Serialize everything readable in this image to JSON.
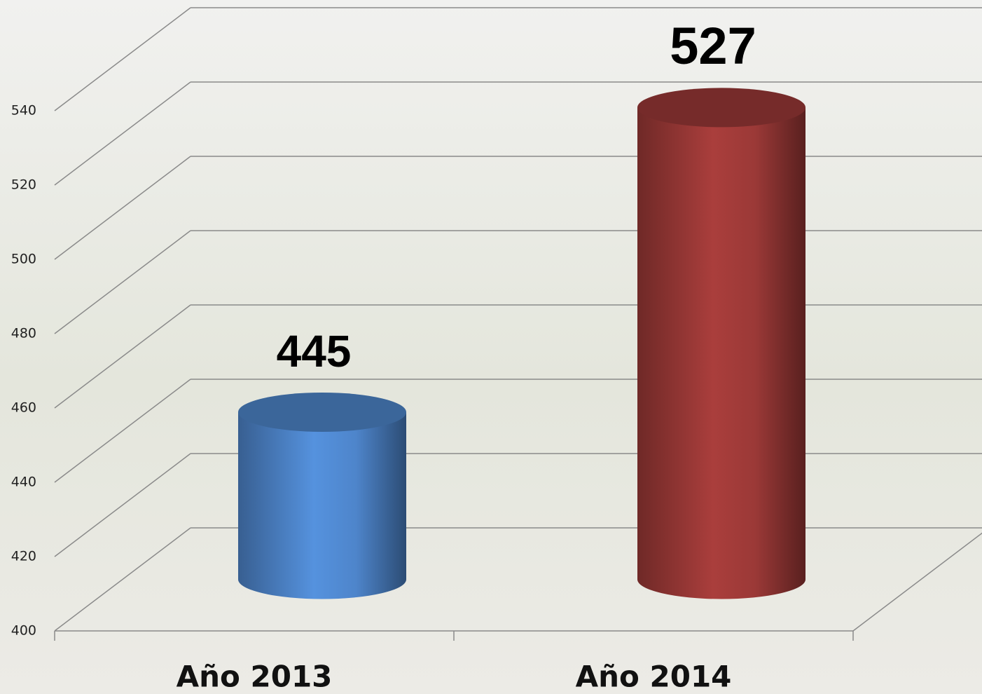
{
  "chart_data": {
    "type": "bar",
    "style": "3d-cylinder",
    "categories": [
      "Año 2013",
      "Año 2014"
    ],
    "series": [
      {
        "name": null,
        "colors": [
          "#4a7fc1",
          "#943634"
        ],
        "values": [
          445,
          527
        ]
      }
    ],
    "ylim": [
      400,
      540
    ],
    "yticks": [
      400,
      420,
      440,
      460,
      480,
      500,
      520,
      540
    ],
    "grid": true
  }
}
